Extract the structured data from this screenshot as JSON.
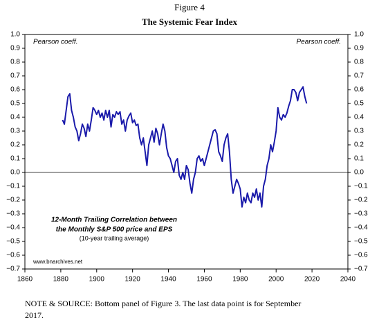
{
  "chart_data": {
    "type": "line",
    "title": "Figure 4",
    "subtitle": "The Systemic Fear Index",
    "annotations": [
      "Pearson coeff.",
      "Pearson coeff.",
      "12-Month Trailing Correlation between",
      "the Monthly S&P 500 price and EPS",
      "(10-year trailing average)",
      "www.bnarchives.net"
    ],
    "note": [
      "NOTE & SOURCE: Bottom panel of Figure 3. The last data point is for September",
      "2017."
    ],
    "x": [
      1881,
      1882,
      1883,
      1884,
      1885,
      1886,
      1887,
      1888,
      1889,
      1890,
      1891,
      1892,
      1893,
      1894,
      1895,
      1896,
      1897,
      1898,
      1899,
      1900,
      1901,
      1902,
      1903,
      1904,
      1905,
      1906,
      1907,
      1908,
      1909,
      1910,
      1911,
      1912,
      1913,
      1914,
      1915,
      1916,
      1917,
      1918,
      1919,
      1920,
      1921,
      1922,
      1923,
      1924,
      1925,
      1926,
      1927,
      1928,
      1929,
      1930,
      1931,
      1932,
      1933,
      1934,
      1935,
      1936,
      1937,
      1938,
      1939,
      1940,
      1941,
      1942,
      1943,
      1944,
      1945,
      1946,
      1947,
      1948,
      1949,
      1950,
      1951,
      1952,
      1953,
      1954,
      1955,
      1956,
      1957,
      1958,
      1959,
      1960,
      1961,
      1962,
      1963,
      1964,
      1965,
      1966,
      1967,
      1968,
      1969,
      1970,
      1971,
      1972,
      1973,
      1974,
      1975,
      1976,
      1977,
      1978,
      1979,
      1980,
      1981,
      1982,
      1983,
      1984,
      1985,
      1986,
      1987,
      1988,
      1989,
      1990,
      1991,
      1992,
      1993,
      1994,
      1995,
      1996,
      1997,
      1998,
      1999,
      2000,
      2001,
      2002,
      2003,
      2004,
      2005,
      2006,
      2007,
      2008,
      2009,
      2010,
      2011,
      2012,
      2013,
      2014,
      2015,
      2016,
      2017
    ],
    "series": [
      {
        "name": "12-Month Trailing Correlation",
        "color": "#1a1aaa",
        "values": [
          0.38,
          0.35,
          0.45,
          0.55,
          0.57,
          0.45,
          0.4,
          0.33,
          0.3,
          0.23,
          0.28,
          0.35,
          0.32,
          0.26,
          0.35,
          0.3,
          0.38,
          0.47,
          0.45,
          0.42,
          0.45,
          0.4,
          0.43,
          0.38,
          0.45,
          0.4,
          0.45,
          0.33,
          0.42,
          0.4,
          0.44,
          0.42,
          0.44,
          0.35,
          0.38,
          0.3,
          0.38,
          0.41,
          0.43,
          0.36,
          0.38,
          0.34,
          0.35,
          0.25,
          0.2,
          0.25,
          0.15,
          0.05,
          0.2,
          0.25,
          0.3,
          0.22,
          0.32,
          0.28,
          0.2,
          0.28,
          0.35,
          0.3,
          0.18,
          0.12,
          0.1,
          0.05,
          0.0,
          0.08,
          0.1,
          -0.02,
          -0.05,
          0.0,
          -0.05,
          0.05,
          0.02,
          -0.08,
          -0.15,
          -0.05,
          0.0,
          0.1,
          0.12,
          0.08,
          0.1,
          0.05,
          0.1,
          0.15,
          0.2,
          0.25,
          0.3,
          0.31,
          0.28,
          0.15,
          0.12,
          0.08,
          0.2,
          0.25,
          0.28,
          0.15,
          -0.05,
          -0.15,
          -0.1,
          -0.05,
          -0.08,
          -0.12,
          -0.25,
          -0.18,
          -0.22,
          -0.15,
          -0.2,
          -0.22,
          -0.15,
          -0.18,
          -0.12,
          -0.2,
          -0.15,
          -0.25,
          -0.1,
          -0.05,
          0.05,
          0.1,
          0.2,
          0.15,
          0.22,
          0.3,
          0.47,
          0.4,
          0.38,
          0.42,
          0.4,
          0.43,
          0.48,
          0.52,
          0.6,
          0.6,
          0.58,
          0.52,
          0.58,
          0.6,
          0.62,
          0.55,
          0.5
        ]
      }
    ],
    "xlim": [
      1860,
      2040
    ],
    "xticks": [
      1860,
      1880,
      1900,
      1920,
      1940,
      1960,
      1980,
      2000,
      2020,
      2040
    ],
    "ylim": [
      -0.7,
      1.0
    ],
    "yticks": [
      {
        "value": -0.7,
        "label": "−0.7"
      },
      {
        "value": -0.6,
        "label": "−0.6"
      },
      {
        "value": -0.5,
        "label": "−0.5"
      },
      {
        "value": -0.4,
        "label": "−0.4"
      },
      {
        "value": -0.3,
        "label": "−0.3"
      },
      {
        "value": -0.2,
        "label": "−0.2"
      },
      {
        "value": -0.1,
        "label": "−0.1"
      },
      {
        "value": 0,
        "label": "0.0"
      },
      0.1,
      0.2,
      0.3,
      0.4,
      0.5,
      0.6,
      0.7,
      0.8,
      0.9,
      {
        "value": 1,
        "label": "1.0"
      }
    ],
    "y2lim": [
      -0.7,
      1.0
    ],
    "y2ticks": [
      {
        "value": -0.7,
        "label": "−0.7"
      },
      {
        "value": -0.6,
        "label": "−0.6"
      },
      {
        "value": -0.5,
        "label": "−0.5"
      },
      {
        "value": -0.4,
        "label": "−0.4"
      },
      {
        "value": -0.3,
        "label": "−0.3"
      },
      {
        "value": -0.2,
        "label": "−0.2"
      },
      {
        "value": -0.1,
        "label": "−0.1"
      },
      {
        "value": 0,
        "label": "0.0"
      },
      0.1,
      0.2,
      0.3,
      0.4,
      0.5,
      0.6,
      0.7,
      0.8,
      0.9,
      {
        "value": 1,
        "label": "1.0"
      }
    ]
  }
}
